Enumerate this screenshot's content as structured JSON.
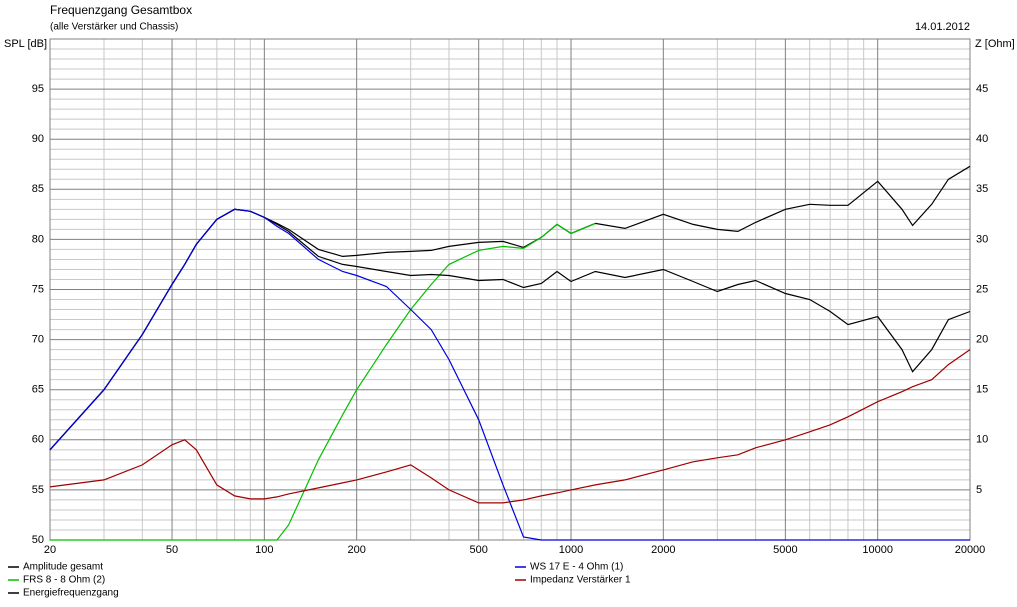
{
  "chart_data": {
    "type": "line",
    "title": "Frequenzgang Gesamtbox",
    "subtitle": "(alle Verstärker und Chassis)",
    "date": "14.01.2012",
    "ylabel": "SPL [dB]",
    "y2label": "Z [Ohm]",
    "log_x": true,
    "grid": true,
    "legend": "bottom",
    "xlim": [
      20,
      20000
    ],
    "xticks": [
      20,
      50,
      100,
      200,
      500,
      1000,
      2000,
      5000,
      10000,
      20000
    ],
    "minor_xticks": [
      30,
      40,
      60,
      70,
      80,
      90,
      300,
      400,
      600,
      700,
      800,
      900,
      3000,
      4000,
      6000,
      7000,
      8000,
      9000
    ],
    "ylim": [
      50,
      100
    ],
    "yticks": [
      50,
      55,
      60,
      65,
      70,
      75,
      80,
      85,
      90,
      95
    ],
    "minor_yticks": [
      51,
      52,
      53,
      54,
      56,
      57,
      58,
      59,
      61,
      62,
      63,
      64,
      66,
      67,
      68,
      69,
      71,
      72,
      73,
      74,
      76,
      77,
      78,
      79,
      81,
      82,
      83,
      84,
      86,
      87,
      88,
      89,
      91,
      92,
      93,
      94,
      96,
      97,
      98,
      99,
      100
    ],
    "y2lim": [
      0,
      50
    ],
    "y2ticks": [
      5,
      10,
      15,
      20,
      25,
      30,
      35,
      40,
      45
    ],
    "x": [
      20,
      30,
      40,
      50,
      55,
      60,
      70,
      80,
      90,
      100,
      110,
      120,
      150,
      180,
      200,
      250,
      300,
      350,
      400,
      500,
      600,
      700,
      800,
      900,
      1000,
      1200,
      1500,
      2000,
      2500,
      3000,
      3500,
      4000,
      5000,
      6000,
      7000,
      8000,
      10000,
      12000,
      13000,
      15000,
      17000,
      20000
    ],
    "series": [
      {
        "name": "Amplitude gesamt",
        "color": "#000000",
        "values": [
          59,
          65,
          70.5,
          75.5,
          77.5,
          79.5,
          82,
          83,
          82.8,
          82.2,
          81.6,
          81,
          79,
          78.3,
          78.4,
          78.7,
          78.8,
          78.9,
          79.3,
          79.7,
          79.8,
          79.2,
          80.2,
          81.5,
          80.6,
          81.6,
          81.1,
          82.5,
          81.5,
          81,
          80.8,
          81.7,
          83,
          83.5,
          83.4,
          83.4,
          85.8,
          83,
          81.4,
          83.5,
          86,
          87.3
        ]
      },
      {
        "name": "FRS 8 - 8 Ohm (2)",
        "color": "#00c000",
        "values": [
          50,
          50,
          50,
          50,
          50,
          50,
          50,
          50,
          50,
          50,
          50,
          51.5,
          58,
          62.5,
          65,
          69.5,
          73,
          75.5,
          77.5,
          78.9,
          79.3,
          79.1,
          80.2,
          81.5,
          80.6,
          81.6,
          null,
          null,
          null,
          null,
          null,
          null,
          null,
          null,
          null,
          null,
          null,
          null,
          null,
          null,
          null,
          null
        ]
      },
      {
        "name": "Energiefrequenzgang",
        "color": "#000000",
        "values": [
          59,
          65,
          70.5,
          75.5,
          77.5,
          79.5,
          82,
          83,
          82.8,
          82.2,
          81.5,
          80.8,
          78.3,
          77.5,
          77.3,
          76.8,
          76.4,
          76.5,
          76.4,
          75.9,
          76,
          75.2,
          75.6,
          76.8,
          75.8,
          76.8,
          76.2,
          77,
          75.8,
          74.8,
          75.5,
          75.9,
          74.6,
          74,
          72.8,
          71.5,
          72.3,
          69,
          66.8,
          69,
          72,
          72.8
        ]
      },
      {
        "name": "WS 17 E - 4 Ohm  (1)",
        "color": "#0000e0",
        "values": [
          59,
          65,
          70.5,
          75.5,
          77.5,
          79.5,
          82,
          83,
          82.8,
          82.2,
          81.3,
          80.6,
          78,
          76.8,
          76.4,
          75.3,
          73,
          71,
          68,
          62,
          55.5,
          50.3,
          50,
          50,
          50,
          50,
          50,
          50,
          50,
          50,
          50,
          50,
          50,
          50,
          50,
          50,
          50,
          50,
          50,
          50,
          50,
          50
        ]
      },
      {
        "name": "Impedanz Verstärker 1",
        "color": "#a00000",
        "axis": "y2",
        "values": [
          5.3,
          6,
          7.5,
          9.5,
          10,
          9,
          5.5,
          4.4,
          4.1,
          4.1,
          4.3,
          4.6,
          5.2,
          5.7,
          6,
          6.8,
          7.5,
          6.2,
          5,
          3.7,
          3.7,
          4,
          4.4,
          4.7,
          5,
          5.5,
          6,
          7,
          7.8,
          8.2,
          8.5,
          9.2,
          10,
          10.8,
          11.5,
          12.3,
          13.8,
          14.8,
          15.3,
          16,
          17.5,
          19
        ]
      }
    ]
  }
}
